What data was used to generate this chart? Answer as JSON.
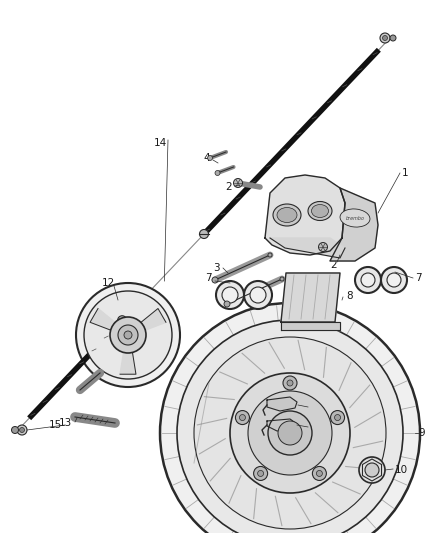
{
  "bg_color": "#ffffff",
  "line_color": "#2a2a2a",
  "label_color": "#1a1a1a",
  "label_fontsize": 7.5,
  "fig_width": 4.38,
  "fig_height": 5.33,
  "dpi": 100
}
